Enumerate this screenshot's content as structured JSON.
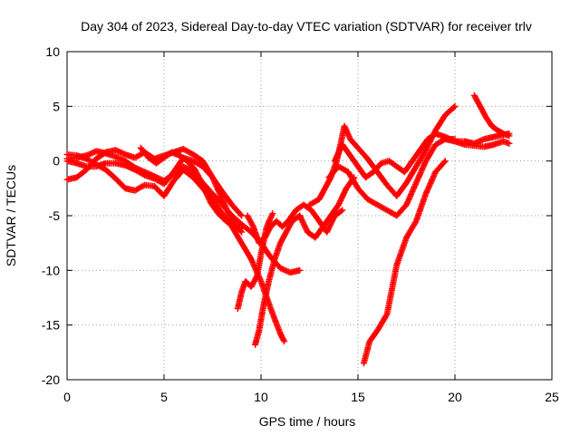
{
  "chart_data": {
    "type": "scatter",
    "title": "Day 304 of 2023, Sidereal Day-to-day VTEC variation (SDTVAR) for receiver trlv",
    "xlabel": "GPS time / hours",
    "ylabel": "SDTVAR / TECUs",
    "xlim": [
      0,
      25
    ],
    "ylim": [
      -20,
      10
    ],
    "xticks": [
      0,
      5,
      10,
      15,
      20,
      25
    ],
    "yticks": [
      -20,
      -15,
      -10,
      -5,
      0,
      5,
      10
    ],
    "grid": true,
    "marker": "+",
    "color": "#ff0000",
    "series": [
      {
        "x": [
          0,
          0.5,
          1,
          1.5,
          2,
          2.5,
          3,
          3.5,
          4,
          4.5,
          5,
          5.5,
          6,
          6.5,
          7,
          7.5,
          8,
          8.5,
          9
        ],
        "y": [
          -1.7,
          -1.5,
          -0.8,
          0.2,
          0.8,
          1.0,
          0.6,
          0.3,
          0.8,
          0.2,
          0.5,
          0.8,
          1.1,
          0.6,
          0.0,
          -1.5,
          -3.5,
          -5.5,
          -6.5
        ]
      },
      {
        "x": [
          0,
          0.5,
          1,
          1.5,
          2,
          2.5,
          3,
          3.5,
          4,
          4.5,
          5,
          5.5,
          6,
          6.5,
          7,
          7.5,
          8,
          8.5,
          9,
          9.5,
          10,
          10.5,
          11,
          11.2
        ],
        "y": [
          0.6,
          0.5,
          0.2,
          -0.3,
          -0.8,
          -1.6,
          -2.5,
          -2.7,
          -2.2,
          -2.3,
          -3.2,
          -1.8,
          -0.8,
          -1.5,
          -2.5,
          -3.6,
          -4.8,
          -6.0,
          -7.5,
          -9.0,
          -11.0,
          -13.5,
          -15.8,
          -16.5
        ]
      },
      {
        "x": [
          0,
          0.5,
          1,
          1.5,
          2,
          2.5,
          3,
          3.5,
          4,
          4.5,
          5,
          5.5,
          6,
          6.5,
          7,
          7.5,
          8,
          8.5,
          9,
          9.5,
          10,
          10.5,
          11,
          11.5,
          12
        ],
        "y": [
          0.2,
          0.3,
          0.5,
          0.9,
          0.7,
          0.4,
          0.0,
          -0.6,
          -1.0,
          -1.4,
          -1.8,
          -1.2,
          -0.5,
          -1.0,
          -2.0,
          -3.0,
          -4.0,
          -5.0,
          -5.8,
          -6.5,
          -7.5,
          -8.8,
          -9.8,
          -10.2,
          -10.0
        ]
      },
      {
        "x": [
          0,
          0.5,
          1,
          1.5,
          2,
          2.5,
          3,
          3.5,
          4,
          4.5,
          5,
          5.5,
          6,
          6.5,
          7,
          7.5,
          8,
          8.5,
          9
        ],
        "y": [
          0.0,
          -0.2,
          -0.5,
          -0.5,
          -0.2,
          -0.2,
          -0.4,
          -0.8,
          -1.3,
          -1.6,
          -2.1,
          -1.0,
          0.3,
          0.0,
          -0.5,
          -1.5,
          -2.8,
          -4.0,
          -5.0
        ]
      },
      {
        "x": [
          3.8,
          4.2,
          4.6,
          5.0,
          5.4,
          5.8,
          6.2,
          6.6,
          7.0,
          7.4,
          7.8,
          8.2,
          8.6,
          9.0
        ],
        "y": [
          1.2,
          0.3,
          -0.2,
          0.3,
          0.8,
          0.5,
          0.0,
          -0.8,
          -2.2,
          -3.8,
          -4.8,
          -5.5,
          -6.0,
          -6.2
        ]
      },
      {
        "x": [
          8.8,
          9.0,
          9.2,
          9.5,
          9.8,
          10.0,
          10.3,
          10.6
        ],
        "y": [
          -13.5,
          -12.0,
          -11.0,
          -11.5,
          -10.5,
          -8.5,
          -6.0,
          -4.8
        ]
      },
      {
        "x": [
          9.7,
          9.9,
          10.1,
          10.4,
          10.7,
          11.0,
          11.3,
          11.6,
          12.0
        ],
        "y": [
          -16.8,
          -15.5,
          -13.5,
          -11.0,
          -9.0,
          -7.5,
          -6.5,
          -5.5,
          -5.0
        ]
      },
      {
        "x": [
          9.3,
          9.6,
          9.9,
          10.2,
          10.5,
          10.8,
          11.1,
          11.4,
          11.8,
          12.2,
          12.6,
          13.0,
          13.4,
          13.8,
          14.2
        ],
        "y": [
          -5.0,
          -6.0,
          -7.5,
          -7.0,
          -6.0,
          -5.5,
          -6.0,
          -5.5,
          -4.5,
          -4.0,
          -4.5,
          -5.5,
          -6.5,
          -5.0,
          -4.5
        ]
      },
      {
        "x": [
          12.0,
          12.4,
          12.8,
          13.2,
          13.6,
          14.0,
          14.4,
          14.8
        ],
        "y": [
          -5.0,
          -6.5,
          -7.0,
          -6.0,
          -5.0,
          -4.0,
          -2.5,
          -1.5
        ]
      },
      {
        "x": [
          12.5,
          13.0,
          13.3,
          13.6,
          13.9,
          14.1,
          14.3,
          14.6,
          15.0,
          15.5,
          16.0,
          16.5,
          17.0,
          17.5,
          18.0,
          18.5,
          19.0,
          19.5,
          20.0
        ],
        "y": [
          -4.0,
          -3.5,
          -2.5,
          -1.5,
          0.0,
          1.5,
          3.2,
          2.0,
          1.2,
          0.2,
          -1.0,
          -2.2,
          -3.2,
          -2.0,
          -0.5,
          1.0,
          2.8,
          4.2,
          5.0
        ]
      },
      {
        "x": [
          13.8,
          14.2,
          14.6,
          15.0,
          15.4,
          15.8,
          16.2,
          16.6,
          17.0,
          17.4,
          17.8,
          18.2,
          18.6,
          19.0
        ],
        "y": [
          0.0,
          1.5,
          0.5,
          -0.5,
          -1.5,
          -1.0,
          -0.2,
          0.0,
          -0.5,
          -1.0,
          0.0,
          1.0,
          2.0,
          2.5
        ]
      },
      {
        "x": [
          13.5,
          14.0,
          14.5,
          15.0,
          15.5,
          16.0,
          16.5,
          17.0,
          17.5,
          18.0,
          18.5,
          19.0,
          19.5,
          20.0
        ],
        "y": [
          -1.5,
          -0.5,
          -1.0,
          -2.5,
          -3.5,
          -4.0,
          -4.5,
          -5.0,
          -4.0,
          -2.0,
          0.0,
          1.5,
          2.0,
          2.0
        ]
      },
      {
        "x": [
          15.3,
          15.6,
          16.0,
          16.5,
          17.0,
          17.5,
          18.0,
          18.5,
          19.0,
          19.5
        ],
        "y": [
          -18.5,
          -16.5,
          -15.5,
          -14.0,
          -9.5,
          -7.0,
          -5.5,
          -3.0,
          -1.0,
          0.0
        ]
      },
      {
        "x": [
          19.5,
          20.0,
          20.5,
          21.0,
          21.5,
          22.0,
          22.5,
          22.8
        ],
        "y": [
          2.0,
          1.8,
          1.5,
          1.4,
          1.3,
          1.5,
          1.8,
          1.6
        ]
      },
      {
        "x": [
          19.0,
          19.5,
          20.0,
          20.5,
          21.0,
          21.5,
          22.0,
          22.5,
          22.8
        ],
        "y": [
          2.5,
          2.2,
          1.8,
          1.8,
          1.6,
          2.0,
          2.2,
          2.4,
          2.5
        ]
      },
      {
        "x": [
          21.0,
          21.3,
          21.6,
          21.9,
          22.2,
          22.5,
          22.8
        ],
        "y": [
          6.0,
          5.0,
          4.0,
          3.2,
          2.8,
          2.5,
          2.3
        ]
      }
    ]
  }
}
